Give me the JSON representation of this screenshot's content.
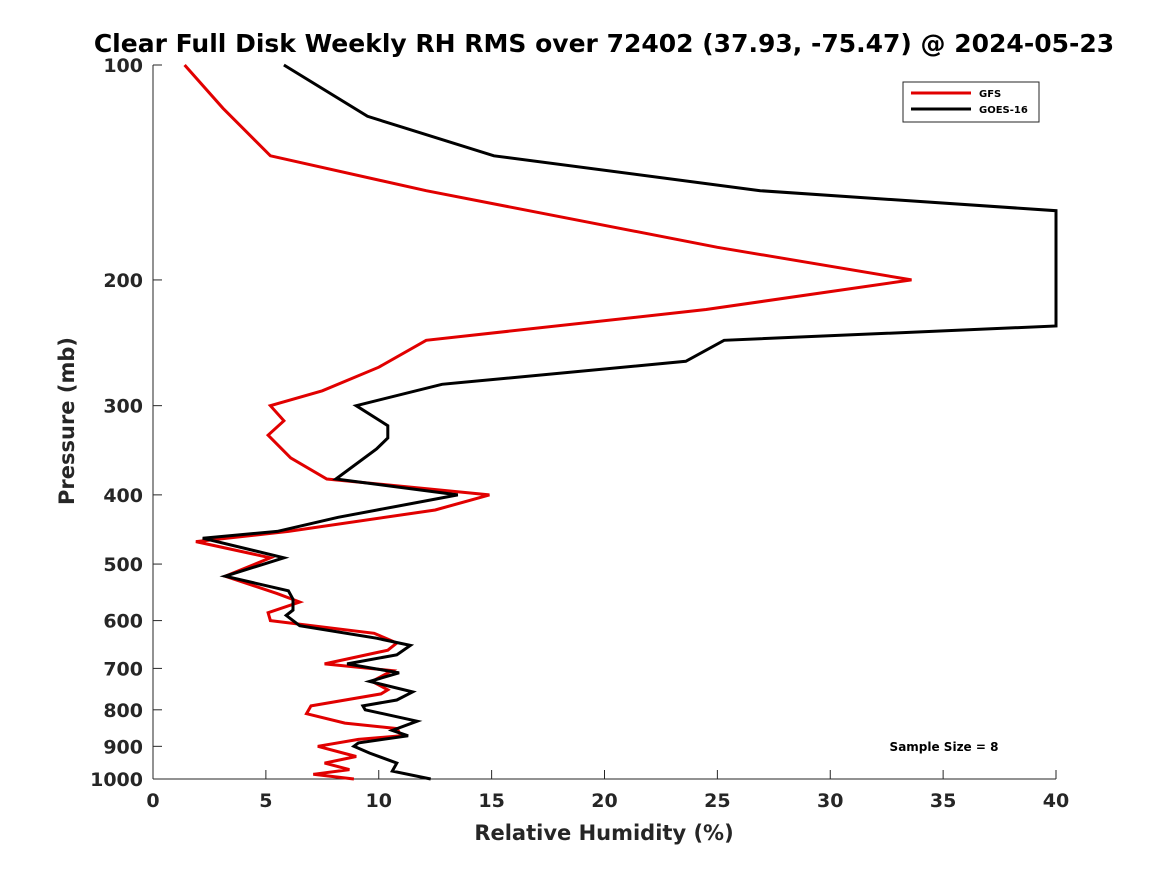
{
  "chart_data": {
    "type": "line",
    "title": "Clear Full Disk Weekly RH RMS over 72402 (37.93, -75.47) @ 2024-05-23",
    "xlabel": "Relative Humidity (%)",
    "ylabel": "Pressure (mb)",
    "xlim": [
      0,
      40
    ],
    "ylim": [
      100,
      1000
    ],
    "y_scale": "log",
    "y_reversed": true,
    "x_ticks": [
      0,
      5,
      10,
      15,
      20,
      25,
      30,
      35,
      40
    ],
    "y_ticks": [
      100,
      200,
      300,
      400,
      500,
      600,
      700,
      800,
      900,
      1000
    ],
    "grid": false,
    "legend_position": "top-right",
    "annotation": "Sample Size = 8",
    "series": [
      {
        "name": "GFS",
        "color": "#e10000",
        "points": [
          [
            1.4,
            100
          ],
          [
            3.1,
            115
          ],
          [
            5.2,
            134
          ],
          [
            12.1,
            150
          ],
          [
            25,
            180
          ],
          [
            33.6,
            200
          ],
          [
            24.5,
            220
          ],
          [
            12.1,
            243
          ],
          [
            10,
            265
          ],
          [
            7.5,
            286
          ],
          [
            5.2,
            300
          ],
          [
            5.8,
            315
          ],
          [
            5.1,
            330
          ],
          [
            6.1,
            355
          ],
          [
            7.7,
            380
          ],
          [
            14.9,
            400
          ],
          [
            12.5,
            420
          ],
          [
            6,
            450
          ],
          [
            1.9,
            465
          ],
          [
            5.2,
            490
          ],
          [
            3.2,
            520
          ],
          [
            5.5,
            550
          ],
          [
            6.5,
            565
          ],
          [
            5.1,
            585
          ],
          [
            5.2,
            600
          ],
          [
            9.8,
            625
          ],
          [
            10.8,
            645
          ],
          [
            10.4,
            660
          ],
          [
            7.6,
            690
          ],
          [
            10.6,
            705
          ],
          [
            9.7,
            730
          ],
          [
            10.4,
            750
          ],
          [
            10.1,
            760
          ],
          [
            7,
            790
          ],
          [
            6.8,
            810
          ],
          [
            8.5,
            835
          ],
          [
            10.8,
            850
          ],
          [
            11,
            870
          ],
          [
            9.1,
            880
          ],
          [
            7.3,
            900
          ],
          [
            9,
            930
          ],
          [
            7.6,
            950
          ],
          [
            8.7,
            970
          ],
          [
            7.1,
            985
          ],
          [
            8.9,
            1000
          ]
        ]
      },
      {
        "name": "GOES-16",
        "color": "#000000",
        "points": [
          [
            5.8,
            100
          ],
          [
            9.5,
            118
          ],
          [
            15.1,
            134
          ],
          [
            26.9,
            150
          ],
          [
            40,
            160
          ],
          [
            40,
            232
          ],
          [
            25.3,
            243
          ],
          [
            23.6,
            260
          ],
          [
            12.8,
            280
          ],
          [
            9,
            300
          ],
          [
            10.4,
            320
          ],
          [
            10.4,
            333
          ],
          [
            9.9,
            345
          ],
          [
            8.1,
            380
          ],
          [
            13.5,
            400
          ],
          [
            8.2,
            430
          ],
          [
            5.5,
            450
          ],
          [
            2.2,
            460
          ],
          [
            5.8,
            490
          ],
          [
            3.2,
            520
          ],
          [
            6,
            545
          ],
          [
            6.2,
            560
          ],
          [
            6.2,
            580
          ],
          [
            5.9,
            590
          ],
          [
            6.5,
            610
          ],
          [
            9.9,
            635
          ],
          [
            11.4,
            650
          ],
          [
            10.8,
            670
          ],
          [
            8.6,
            690
          ],
          [
            10.9,
            710
          ],
          [
            9.6,
            730
          ],
          [
            11.5,
            755
          ],
          [
            10.8,
            775
          ],
          [
            9.3,
            790
          ],
          [
            9.4,
            800
          ],
          [
            11.7,
            830
          ],
          [
            10.6,
            855
          ],
          [
            11.3,
            870
          ],
          [
            9.1,
            890
          ],
          [
            8.9,
            900
          ],
          [
            9.6,
            920
          ],
          [
            10.8,
            950
          ],
          [
            10.6,
            975
          ],
          [
            12.3,
            1000
          ]
        ]
      }
    ]
  }
}
